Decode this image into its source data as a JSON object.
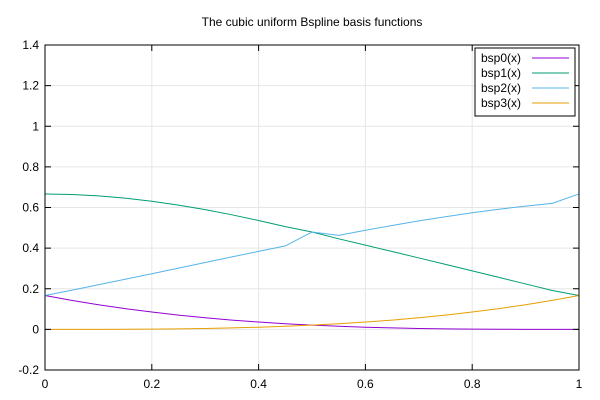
{
  "chart_data": {
    "type": "line",
    "title": "The cubic uniform Bspline basis functions",
    "xlabel": "",
    "ylabel": "",
    "xlim": [
      0,
      1
    ],
    "ylim": [
      -0.2,
      1.4
    ],
    "grid": true,
    "legend_position": "top-right",
    "x_ticks": [
      "0",
      "0.2",
      "0.4",
      "0.6",
      "0.8",
      "1"
    ],
    "y_ticks": [
      "-0.2",
      "0",
      "0.2",
      "0.4",
      "0.6",
      "0.8",
      "1",
      "1.2",
      "1.4"
    ],
    "x": [
      0,
      0.05,
      0.1,
      0.15,
      0.2,
      0.25,
      0.3,
      0.35,
      0.4,
      0.45,
      0.5,
      0.55,
      0.6,
      0.65,
      0.7,
      0.75,
      0.8,
      0.85,
      0.9,
      0.95,
      1
    ],
    "series": [
      {
        "name": "bsp0(x)",
        "color": "#9400d3",
        "values": [
          0.16667,
          0.1429,
          0.1215,
          0.1024,
          0.08533,
          0.07031,
          0.05717,
          0.04577,
          0.036,
          0.02773,
          0.02083,
          0.01519,
          0.01067,
          0.00715,
          0.0045,
          0.0026,
          0.00133,
          0.00056,
          0.00017,
          2e-05,
          0.0
        ]
      },
      {
        "name": "bsp1(x)",
        "color": "#009e73",
        "values": [
          0.66667,
          0.66429,
          0.65733,
          0.64604,
          0.63067,
          0.61198,
          0.5895,
          0.56396,
          0.536,
          0.50579,
          0.47917,
          0.44585,
          0.41467,
          0.38329,
          0.35167,
          0.3199,
          0.288,
          0.25585,
          0.22367,
          0.19146,
          0.16667
        ]
      },
      {
        "name": "bsp2(x)",
        "color": "#56b4e9",
        "values": [
          0.16667,
          0.19279,
          0.2195,
          0.24657,
          0.274,
          0.30156,
          0.32917,
          0.35669,
          0.384,
          0.41092,
          0.47917,
          0.46298,
          0.488,
          0.51154,
          0.534,
          0.55469,
          0.574,
          0.59131,
          0.607,
          0.62044,
          0.66667
        ]
      },
      {
        "name": "bsp3(x)",
        "color": "#e69f00",
        "values": [
          0.0,
          2e-05,
          0.00017,
          0.00056,
          0.00133,
          0.0026,
          0.0045,
          0.00715,
          0.01067,
          0.01519,
          0.02083,
          0.02773,
          0.036,
          0.04577,
          0.05717,
          0.07031,
          0.08533,
          0.1024,
          0.1215,
          0.1429,
          0.16667
        ]
      }
    ]
  }
}
